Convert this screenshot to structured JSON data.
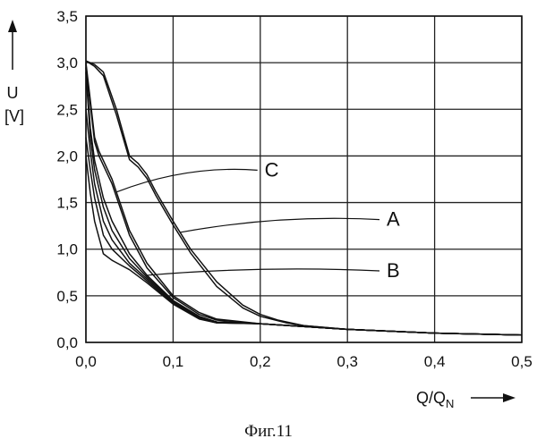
{
  "chart_data": {
    "type": "line",
    "xlabel_main": "Q/Q",
    "xlabel_sub": "N",
    "ylabel_line1": "U",
    "ylabel_line2": "[V]",
    "xlim": [
      0,
      0.5
    ],
    "ylim": [
      0,
      3.5
    ],
    "xticks": [
      0,
      0.1,
      0.2,
      0.3,
      0.4,
      0.5
    ],
    "xtick_labels": [
      "0,0",
      "0,1",
      "0,2",
      "0,3",
      "0,4",
      "0,5"
    ],
    "yticks": [
      0,
      0.5,
      1.0,
      1.5,
      2.0,
      2.5,
      3.0,
      3.5
    ],
    "ytick_labels": [
      "0,0",
      "0,5",
      "1,0",
      "1,5",
      "2,0",
      "2,5",
      "3,0",
      "3,5"
    ],
    "grid": true,
    "series": [
      {
        "name": "A",
        "x": [
          0,
          0.01,
          0.02,
          0.035,
          0.05,
          0.06,
          0.07,
          0.08,
          0.1,
          0.12,
          0.15,
          0.18,
          0.2,
          0.22,
          0.25,
          0.3,
          0.4,
          0.5
        ],
        "y": [
          3.02,
          2.98,
          2.9,
          2.5,
          2.0,
          1.92,
          1.8,
          1.62,
          1.3,
          1.0,
          0.65,
          0.4,
          0.3,
          0.24,
          0.18,
          0.14,
          0.1,
          0.08
        ]
      },
      {
        "name": "",
        "x": [
          0,
          0.01,
          0.02,
          0.035,
          0.05,
          0.06,
          0.07,
          0.08,
          0.1,
          0.12,
          0.15,
          0.18,
          0.2,
          0.23,
          0.25,
          0.3,
          0.4,
          0.5
        ],
        "y": [
          3.02,
          2.96,
          2.86,
          2.44,
          1.96,
          1.88,
          1.76,
          1.58,
          1.26,
          0.96,
          0.6,
          0.37,
          0.28,
          0.21,
          0.18,
          0.14,
          0.1,
          0.08
        ]
      },
      {
        "name": "C",
        "x": [
          0,
          0.005,
          0.01,
          0.015,
          0.02,
          0.03,
          0.05,
          0.07,
          0.1,
          0.13,
          0.15,
          0.2,
          0.25,
          0.3,
          0.4,
          0.5
        ],
        "y": [
          3.0,
          2.6,
          2.2,
          2.05,
          1.95,
          1.75,
          1.2,
          0.85,
          0.5,
          0.32,
          0.25,
          0.2,
          0.17,
          0.14,
          0.1,
          0.08
        ]
      },
      {
        "name": "",
        "x": [
          0,
          0.005,
          0.01,
          0.015,
          0.02,
          0.03,
          0.05,
          0.07,
          0.1,
          0.13,
          0.15,
          0.2,
          0.25,
          0.3,
          0.4,
          0.5
        ],
        "y": [
          2.98,
          2.55,
          2.15,
          2.0,
          1.9,
          1.7,
          1.15,
          0.8,
          0.48,
          0.3,
          0.24,
          0.2,
          0.17,
          0.14,
          0.1,
          0.08
        ]
      },
      {
        "name": "B",
        "x": [
          0,
          0.005,
          0.01,
          0.02,
          0.03,
          0.05,
          0.07,
          0.1,
          0.13,
          0.15,
          0.2,
          0.25,
          0.3,
          0.4,
          0.5
        ],
        "y": [
          2.95,
          2.3,
          1.95,
          1.55,
          1.3,
          0.95,
          0.72,
          0.45,
          0.28,
          0.22,
          0.2,
          0.17,
          0.14,
          0.1,
          0.08
        ]
      },
      {
        "name": "",
        "x": [
          0,
          0.005,
          0.01,
          0.02,
          0.03,
          0.05,
          0.07,
          0.1,
          0.13,
          0.15,
          0.2,
          0.25,
          0.3,
          0.4,
          0.5
        ],
        "y": [
          2.9,
          2.2,
          1.85,
          1.45,
          1.2,
          0.9,
          0.7,
          0.44,
          0.27,
          0.22,
          0.2,
          0.17,
          0.14,
          0.1,
          0.08
        ]
      },
      {
        "name": "",
        "x": [
          0,
          0.005,
          0.01,
          0.02,
          0.03,
          0.05,
          0.07,
          0.1,
          0.13,
          0.15,
          0.2,
          0.25,
          0.3,
          0.4,
          0.5
        ],
        "y": [
          2.5,
          2.05,
          1.7,
          1.3,
          1.1,
          0.85,
          0.68,
          0.43,
          0.27,
          0.22,
          0.2,
          0.17,
          0.14,
          0.1,
          0.08
        ]
      },
      {
        "name": "",
        "x": [
          0,
          0.005,
          0.01,
          0.02,
          0.03,
          0.05,
          0.07,
          0.1,
          0.13,
          0.15,
          0.2,
          0.25,
          0.3,
          0.4,
          0.5
        ],
        "y": [
          2.2,
          1.85,
          1.55,
          1.15,
          1.0,
          0.82,
          0.66,
          0.42,
          0.26,
          0.21,
          0.2,
          0.17,
          0.14,
          0.1,
          0.08
        ]
      },
      {
        "name": "",
        "x": [
          0,
          0.005,
          0.01,
          0.02,
          0.03,
          0.05,
          0.07,
          0.1,
          0.13,
          0.15,
          0.2,
          0.25,
          0.3,
          0.4,
          0.5
        ],
        "y": [
          2.0,
          1.6,
          1.3,
          0.95,
          0.88,
          0.78,
          0.64,
          0.41,
          0.25,
          0.21,
          0.2,
          0.17,
          0.14,
          0.1,
          0.08
        ]
      }
    ]
  },
  "caption": "Фиг.11"
}
